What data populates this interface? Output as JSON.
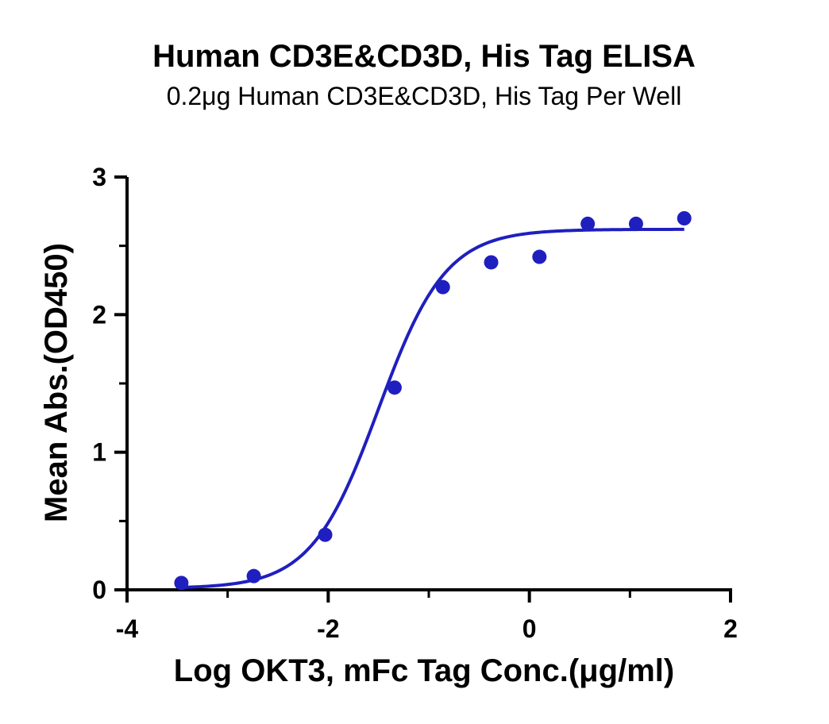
{
  "chart_data": {
    "type": "scatter",
    "title": "Human CD3E&CD3D, His Tag ELISA",
    "subtitle": "0.2μg Human CD3E&CD3D, His Tag Per Well",
    "xlabel": "Log OKT3, mFc Tag Conc.(μg/ml)",
    "ylabel": "Mean Abs.(OD450)",
    "xlim": [
      -4,
      2
    ],
    "ylim": [
      0,
      3
    ],
    "xticks": [
      "-4",
      "-2",
      "0",
      "2"
    ],
    "yticks": [
      "0",
      "1",
      "2",
      "3"
    ],
    "grid": false,
    "color": "#1f1fbf",
    "series": [
      {
        "x": [
          -3.46,
          -2.74,
          -2.03,
          -1.34,
          -0.86,
          -0.38,
          0.1,
          0.58,
          1.06,
          1.54
        ],
        "y": [
          0.05,
          0.1,
          0.4,
          1.47,
          2.2,
          2.38,
          2.42,
          2.66,
          2.66,
          2.7
        ]
      }
    ],
    "fit": {
      "model": "4PL",
      "bottom": 0.01,
      "top": 2.62,
      "log_ec50": -1.5,
      "hill_slope": 1.3,
      "x_range": [
        -3.46,
        1.54
      ]
    }
  }
}
